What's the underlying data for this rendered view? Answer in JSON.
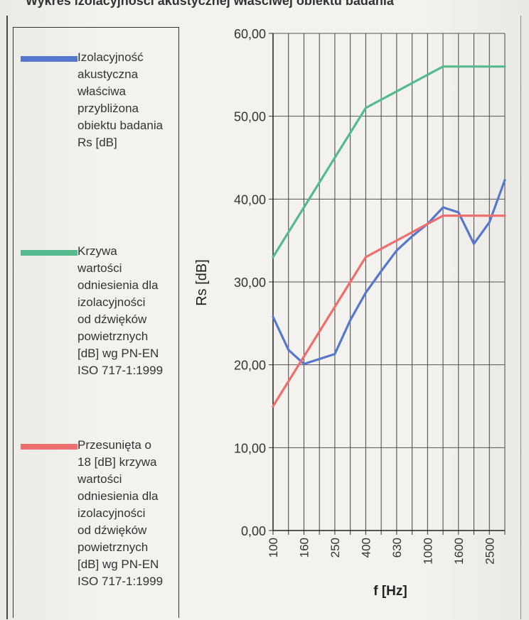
{
  "page": {
    "title": "Wykres izolacyjności akustycznej właściwej obiektu badania"
  },
  "legend": {
    "entries": [
      {
        "text": "Izolacyjność\nakustyczna\nwłaściwa\nprzybliżona\nobiektu badania\nRs [dB]",
        "color": "#5577cc"
      },
      {
        "text": "Krzywa\nwartości\nodniesienia dla\nizolacyjności\nod dźwięków\npowietrznych\n[dB] wg PN-EN\nISO 717-1:1999",
        "color": "#55bb8e"
      },
      {
        "text": "Przesunięta o\n18 [dB] krzywa\nwartości\nodniesienia dla\nizolacyjności\nod dźwięków\npowietrznych\n[dB] wg PN-EN\nISO 717-1:1999",
        "color": "#ee6e6e"
      }
    ]
  },
  "chart_data": {
    "type": "line",
    "title": "",
    "xlabel": "f [Hz]",
    "ylabel": "Rs [dB]",
    "ylim": [
      0,
      60
    ],
    "y_ticks": [
      "0,00",
      "10,00",
      "20,00",
      "30,00",
      "40,00",
      "50,00",
      "60,00"
    ],
    "x_tick_labels": [
      "100",
      "160",
      "250",
      "400",
      "630",
      "1000",
      "1600",
      "2500"
    ],
    "grid": true,
    "legend_position": "left",
    "x": [
      "100",
      "125",
      "160",
      "200",
      "250",
      "315",
      "400",
      "500",
      "630",
      "800",
      "1000",
      "1250",
      "1600",
      "2000",
      "2500",
      "3150"
    ],
    "series": [
      {
        "name": "Izolacyjność akustyczna właściwa przybliżona obiektu badania Rs [dB]",
        "color": "#5577cc",
        "values": [
          25.8,
          21.8,
          20.1,
          20.7,
          21.3,
          25.4,
          28.7,
          31.3,
          33.8,
          35.5,
          37.0,
          39.0,
          38.4,
          34.6,
          37.2,
          42.3
        ]
      },
      {
        "name": "Krzywa wartości odniesienia dla izolacyjności od dźwięków powietrznych [dB] wg PN-EN ISO 717-1:1999",
        "color": "#55bb8e",
        "values": [
          33,
          36,
          39,
          42,
          45,
          48,
          51,
          52,
          53,
          54,
          55,
          56,
          56,
          56,
          56,
          56
        ]
      },
      {
        "name": "Przesunięta o 18 [dB] krzywa wartości odniesienia dla izolacyjności od dźwięków powietrznych [dB] wg PN-EN ISO 717-1:1999",
        "color": "#ee6e6e",
        "values": [
          15,
          18,
          21,
          24,
          27,
          30,
          33,
          34,
          35,
          36,
          37,
          38,
          38,
          38,
          38,
          38
        ]
      }
    ]
  }
}
